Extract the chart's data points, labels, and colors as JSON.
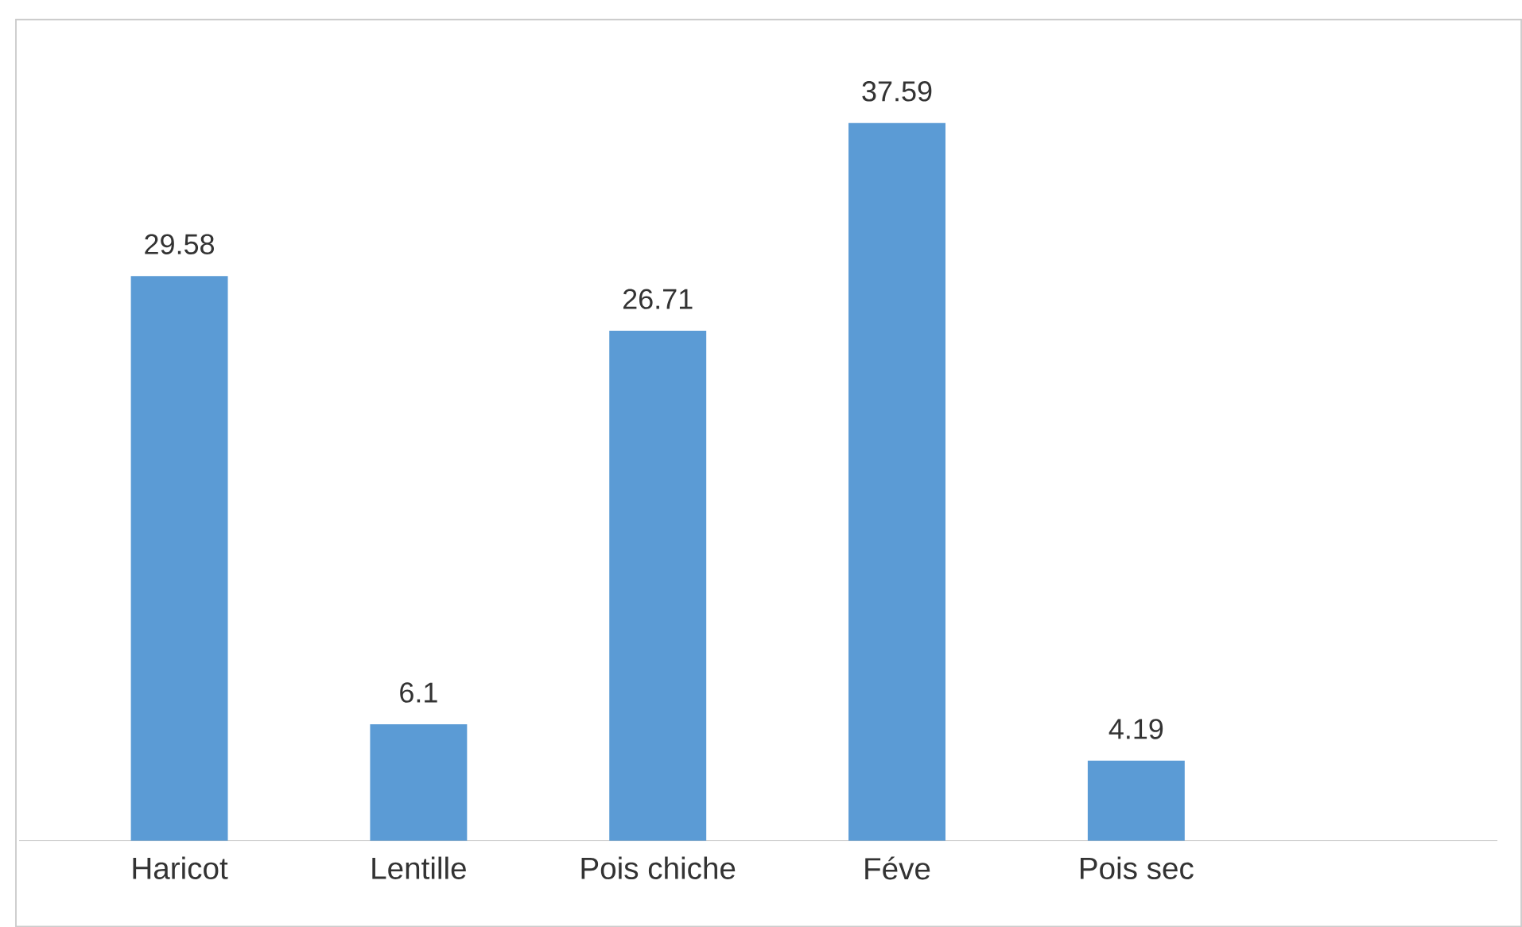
{
  "chart_data": {
    "type": "bar",
    "categories": [
      "Haricot",
      "Lentille",
      "Pois chiche",
      "Féve",
      "Pois sec",
      null
    ],
    "values": [
      29.58,
      6.1,
      26.71,
      37.59,
      4.19,
      null
    ],
    "color": "#5b9bd5",
    "data_labels": true
  }
}
